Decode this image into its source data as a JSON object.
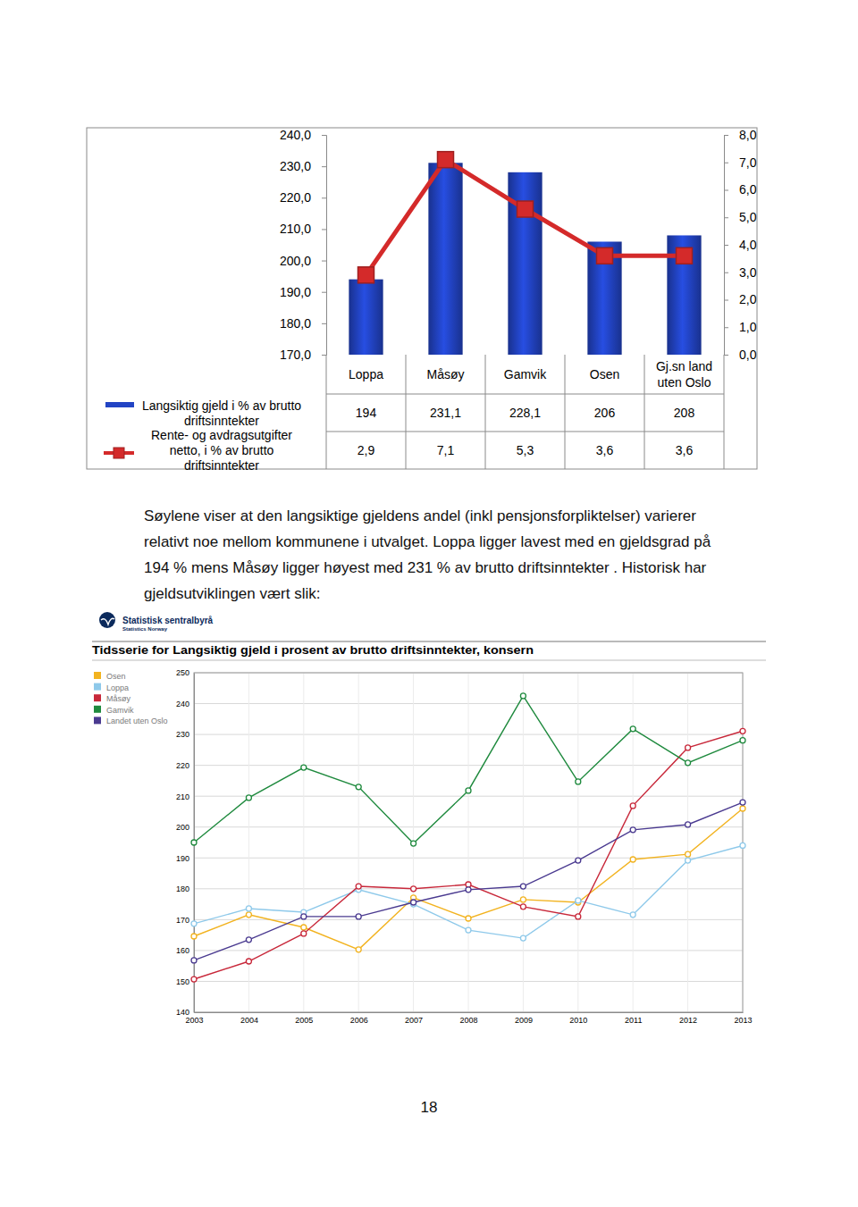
{
  "chart_data": [
    {
      "type": "bar",
      "categories": [
        "Loppa",
        "Måsøy",
        "Gamvik",
        "Osen",
        "Gj.sn land uten Oslo"
      ],
      "series": [
        {
          "name": "Langsiktig gjeld i % av brutto driftsinntekter",
          "type": "bar",
          "color": "#2244c4",
          "values": [
            194,
            231.1,
            228.1,
            206,
            208
          ],
          "value_labels": [
            "194",
            "231,1",
            "228,1",
            "206",
            "208"
          ]
        },
        {
          "name": "Rente- og avdragsutgifter netto, i % av brutto driftsinntekter",
          "type": "line",
          "axis": "y2",
          "color": "#d42a2a",
          "marker": "square",
          "values": [
            2.9,
            7.1,
            5.3,
            3.6,
            3.6
          ],
          "value_labels": [
            "2,9",
            "7,1",
            "5,3",
            "3,6",
            "3,6"
          ]
        }
      ],
      "ylim": [
        170,
        240
      ],
      "yticks": [
        {
          "value": 170,
          "label": "170,0"
        },
        {
          "value": 180,
          "label": "180,0"
        },
        {
          "value": 190,
          "label": "190,0"
        },
        {
          "value": 200,
          "label": "200,0"
        },
        {
          "value": 210,
          "label": "210,0"
        },
        {
          "value": 220,
          "label": "220,0"
        },
        {
          "value": 230,
          "label": "230,0"
        },
        {
          "value": 240,
          "label": "240,0"
        }
      ],
      "y2lim": [
        0,
        8
      ],
      "y2ticks": [
        {
          "value": 0,
          "label": "0,0"
        },
        {
          "value": 1,
          "label": "1,0"
        },
        {
          "value": 2,
          "label": "2,0"
        },
        {
          "value": 3,
          "label": "3,0"
        },
        {
          "value": 4,
          "label": "4,0"
        },
        {
          "value": 5,
          "label": "5,0"
        },
        {
          "value": 6,
          "label": "6,0"
        },
        {
          "value": 7,
          "label": "7,0"
        },
        {
          "value": 8,
          "label": "8,0"
        }
      ],
      "grid": false,
      "data_labels": true
    },
    {
      "type": "line",
      "title": "Tidsserie for Langsiktig gjeld i prosent av brutto driftsinntekter, konsern",
      "x": [
        2003,
        2004,
        2005,
        2006,
        2007,
        2008,
        2009,
        2010,
        2011,
        2012,
        2013
      ],
      "xlim": [
        2003,
        2013
      ],
      "xticks": [
        2003,
        2004,
        2005,
        2006,
        2007,
        2008,
        2009,
        2010,
        2011,
        2012,
        2013
      ],
      "ylim": [
        140,
        250
      ],
      "yticks": [
        140,
        150,
        160,
        170,
        180,
        190,
        200,
        210,
        220,
        230,
        240,
        250
      ],
      "grid": true,
      "legend": "top-left",
      "series": [
        {
          "name": "Osen",
          "color": "#f2b320",
          "marker": "circle",
          "values": [
            164.6,
            171.6,
            167.5,
            160.3,
            177.1,
            170.4,
            176.5,
            175.6,
            189.5,
            191.2,
            206
          ]
        },
        {
          "name": "Loppa",
          "color": "#8ec9ea",
          "marker": "circle",
          "values": [
            168.7,
            173.6,
            172.4,
            179.7,
            175,
            166.6,
            164,
            176.2,
            171.6,
            189.2,
            194
          ]
        },
        {
          "name": "Måsøy",
          "color": "#c8283a",
          "marker": "circle",
          "values": [
            150.7,
            156.5,
            165.5,
            180.8,
            180,
            181.4,
            174.2,
            171,
            206.9,
            225.7,
            231.1
          ]
        },
        {
          "name": "Gamvik",
          "color": "#1f8a3e",
          "marker": "circle",
          "values": [
            195,
            209.5,
            219.3,
            213,
            194.7,
            211.8,
            242.5,
            214.7,
            231.8,
            220.8,
            228.1
          ]
        },
        {
          "name": "Landet uten Oslo",
          "color": "#4a3a90",
          "marker": "circle",
          "values": [
            156.8,
            163.5,
            171,
            171,
            175.6,
            179.7,
            180.8,
            189.2,
            199.1,
            200.8,
            208
          ]
        }
      ]
    }
  ],
  "paragraph_lines": [
    "Søylene viser at den langsiktige gjeldens andel (inkl pensjonsforpliktelser) varierer",
    "relativt noe mellom kommunene i utvalget. Loppa ligger lavest med en gjeldsgrad på",
    "194 % mens Måsøy ligger høyest med 231 % av brutto driftsinntekter . Historisk har",
    "gjeldsutviklingen vært slik:"
  ],
  "source": {
    "name": "Statistisk sentralbyrå",
    "name_en": "Statistics Norway"
  },
  "page_number": 18
}
